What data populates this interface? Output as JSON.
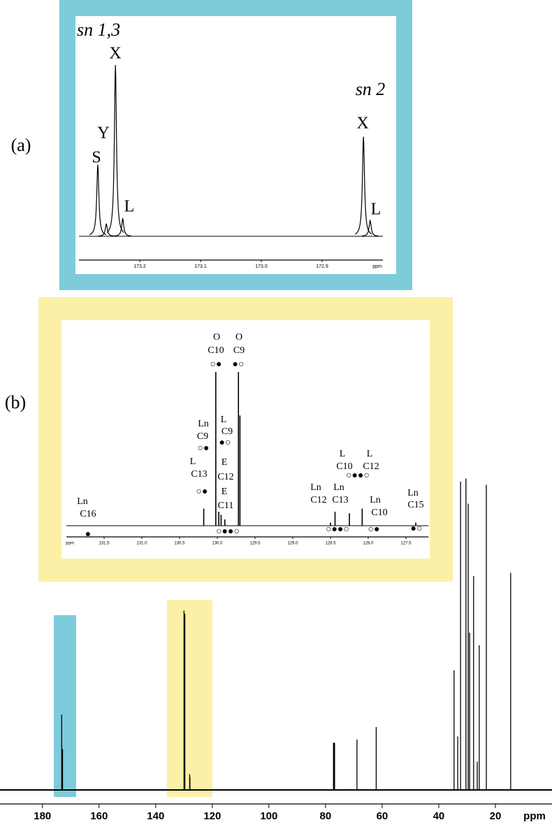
{
  "panel_labels": [
    "(a)",
    "(b)"
  ],
  "chart_data": [
    {
      "type": "stem",
      "color": "#000000",
      "x_label": "ppm",
      "xlim": [
        195,
        0
      ],
      "xticks": [
        180,
        160,
        140,
        120,
        100,
        80,
        60,
        40,
        20
      ],
      "ylim": [
        0,
        100
      ],
      "regions": [
        {
          "range": [
            176,
            168.1
          ],
          "color": "#7ecbdc"
        },
        {
          "range": [
            136,
            120
          ],
          "color": "#fbf0a6"
        }
      ],
      "x": [
        173.2,
        172.9,
        130.0,
        129.7,
        128.0,
        127.9,
        77.2,
        77.0,
        76.8,
        68.9,
        62.1,
        34.6,
        33.3,
        32.3,
        30.4,
        29.6,
        29.1,
        27.7,
        26.4,
        25.7,
        23.2,
        14.6
      ],
      "values": [
        24,
        13,
        57,
        56,
        5,
        4,
        15,
        15,
        15,
        16,
        20,
        38,
        17,
        98,
        99,
        91,
        50,
        68,
        9,
        46,
        97,
        69
      ]
    },
    {
      "type": "peaks",
      "color": "#000000",
      "frame_color": "#7ecbdc",
      "x_label": "ppm",
      "xlim": [
        173.3,
        172.8
      ],
      "xticks": [
        173.2,
        173.1,
        {
          "value": 173.0,
          "label": "173.0"
        },
        172.9
      ],
      "ylim": [
        0,
        100
      ],
      "x": [
        173.269,
        173.255,
        173.24,
        173.228,
        172.832,
        172.821
      ],
      "values": [
        41,
        7,
        98,
        10,
        57,
        9
      ],
      "peak_labels": [
        "S",
        "Y",
        "X",
        "L",
        "X",
        "L"
      ],
      "annotations": [
        "sn 1,3",
        "sn 2"
      ]
    },
    {
      "type": "stem",
      "color": "#000000",
      "frame_color": "#fbf0a6",
      "x_label": "ppm",
      "xlim": [
        132,
        127.2
      ],
      "xticks": [
        131.5,
        {
          "value": 131.0,
          "label": "131.0"
        },
        130.5,
        {
          "value": 130.0,
          "label": "130.0"
        },
        129.5,
        {
          "value": 129.0,
          "label": "129.0"
        },
        128.5,
        {
          "value": 128.0,
          "label": "128.0"
        },
        127.5
      ],
      "ylim": [
        0,
        100
      ],
      "x": [
        130.18,
        130.02,
        129.98,
        129.95,
        129.9,
        129.72,
        129.7,
        128.5,
        128.44,
        128.25,
        128.08,
        127.37
      ],
      "values": [
        11,
        99,
        9,
        7,
        4,
        99,
        71,
        2,
        9,
        8,
        11,
        2
      ],
      "annotations": [
        "Ln",
        "C16",
        "●",
        "L",
        "C13",
        "○●",
        "Ln",
        "C9",
        "○●",
        "O",
        "C10",
        "○●",
        "O",
        "C9",
        "●○",
        "L",
        "C9",
        "●○",
        "E",
        "C12",
        "E",
        "C11",
        "○●●○",
        "L",
        "C10",
        "L",
        "C12",
        "○●●○",
        "Ln",
        "C12",
        "Ln",
        "C13",
        "○●●○",
        "Ln",
        "C10",
        "○●",
        "Ln",
        "C15",
        "●○"
      ]
    }
  ]
}
